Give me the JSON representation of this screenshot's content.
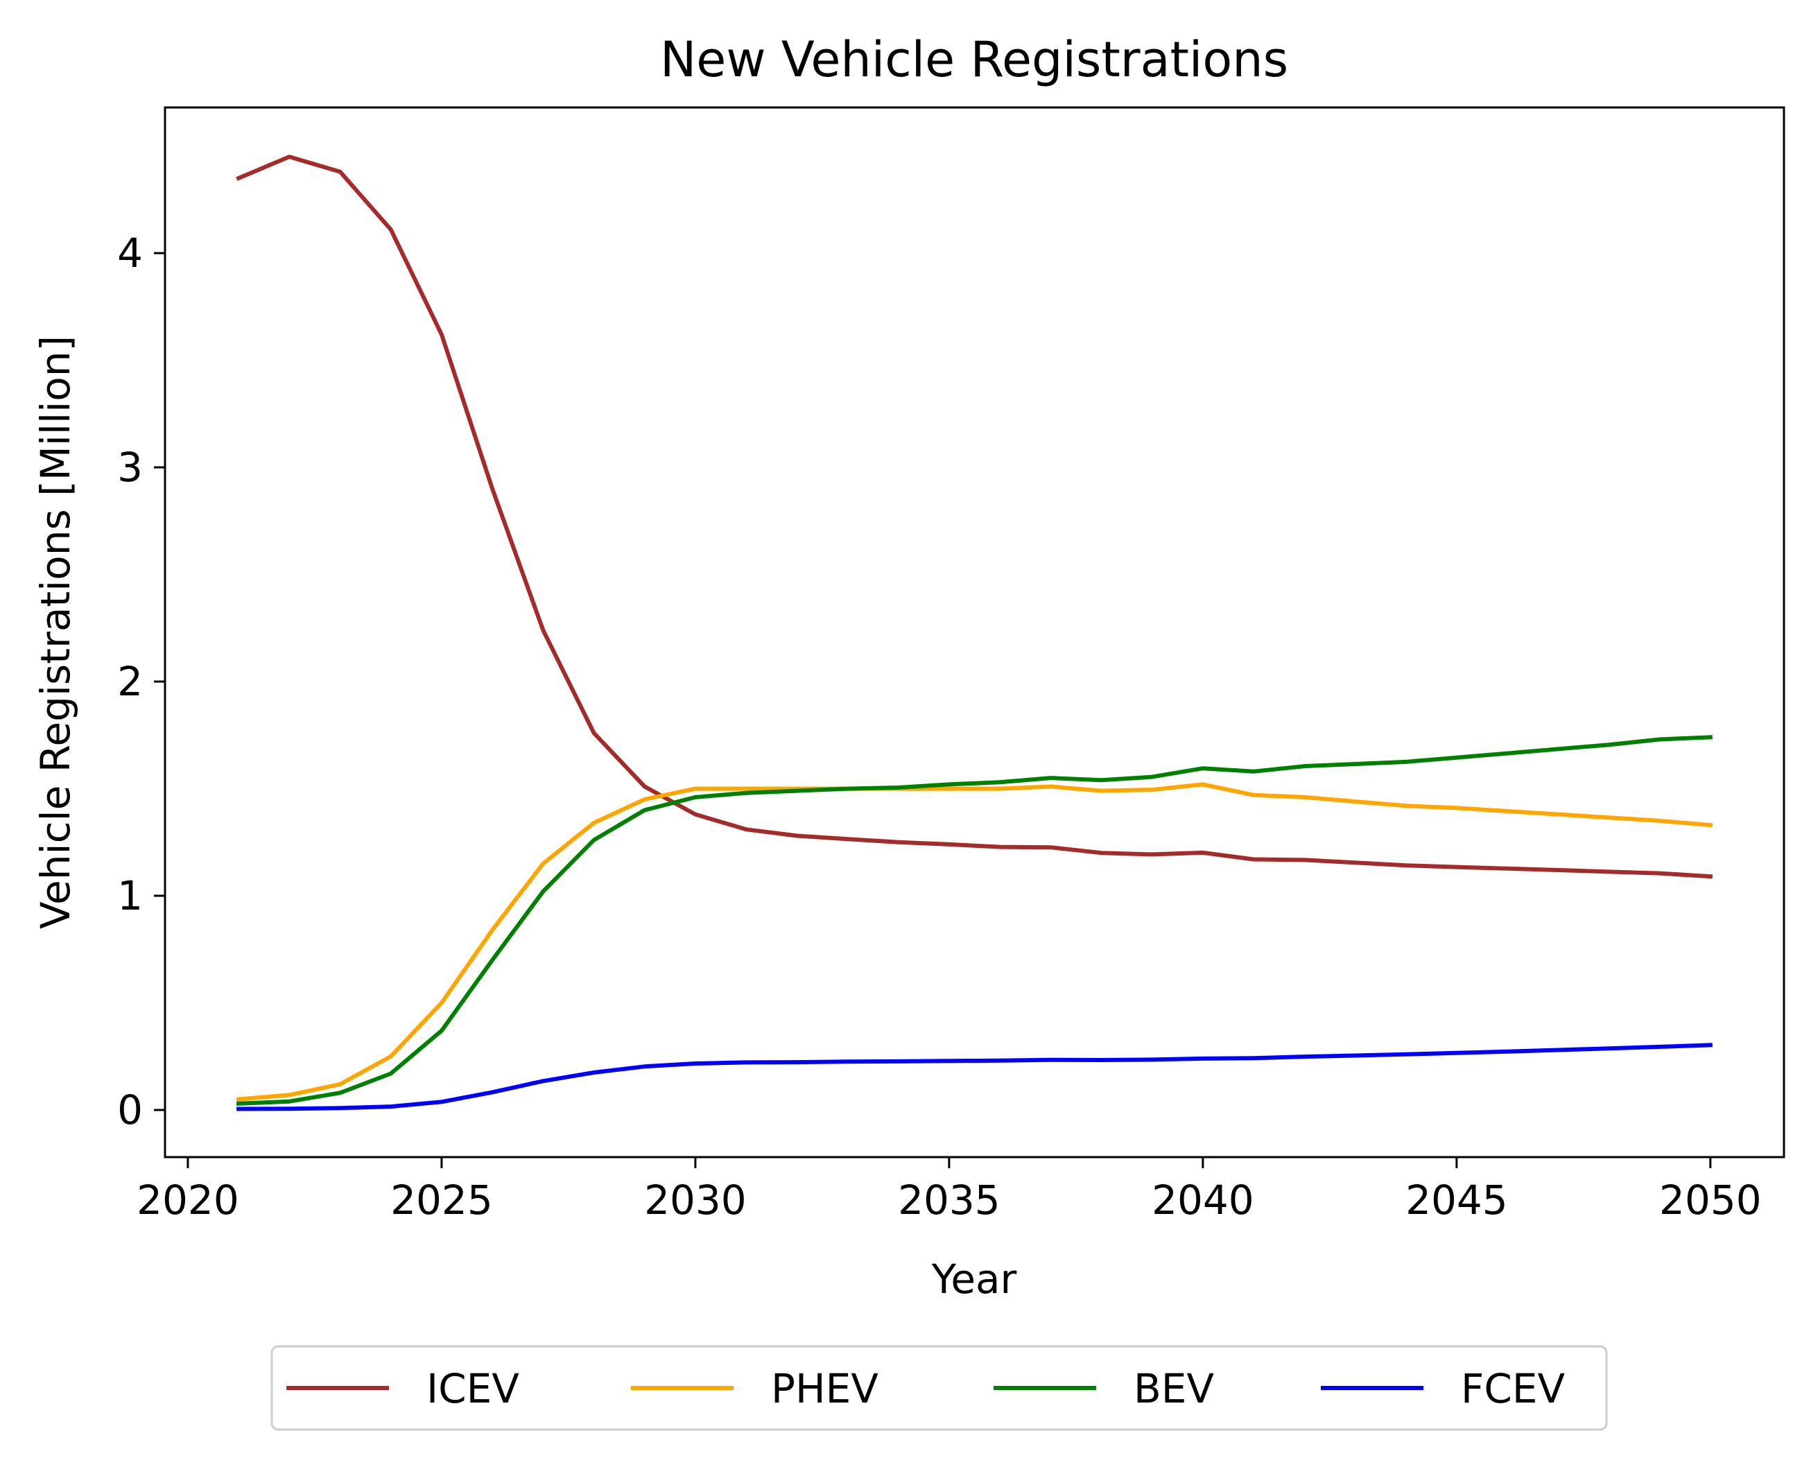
{
  "chart_data": {
    "type": "line",
    "title": "New Vehicle Registrations",
    "xlabel": "Year",
    "ylabel": "Vehicle Registrations [Million]",
    "xlim": [
      2019.55,
      2051.45
    ],
    "ylim": [
      -0.22,
      4.68
    ],
    "xticks": [
      2020,
      2025,
      2030,
      2035,
      2040,
      2045,
      2050
    ],
    "yticks": [
      0,
      1,
      2,
      3,
      4
    ],
    "grid": false,
    "legend_position": "bottom-center, below plot",
    "x": [
      2021,
      2022,
      2023,
      2024,
      2025,
      2026,
      2027,
      2028,
      2029,
      2030,
      2031,
      2032,
      2033,
      2034,
      2035,
      2036,
      2037,
      2038,
      2039,
      2040,
      2041,
      2042,
      2043,
      2044,
      2045,
      2046,
      2047,
      2048,
      2049,
      2050
    ],
    "series": [
      {
        "name": "ICEV",
        "color": "#A52A2A",
        "values": [
          4.35,
          4.45,
          4.38,
          4.11,
          3.62,
          2.9,
          2.24,
          1.76,
          1.51,
          1.38,
          1.31,
          1.28,
          1.265,
          1.25,
          1.24,
          1.228,
          1.226,
          1.2,
          1.193,
          1.201,
          1.17,
          1.167,
          1.155,
          1.142,
          1.134,
          1.127,
          1.12,
          1.112,
          1.105,
          1.09
        ]
      },
      {
        "name": "PHEV",
        "color": "#FFA500",
        "values": [
          0.05,
          0.07,
          0.12,
          0.25,
          0.5,
          0.84,
          1.15,
          1.34,
          1.45,
          1.5,
          1.5,
          1.5,
          1.5,
          1.5,
          1.5,
          1.5,
          1.51,
          1.49,
          1.495,
          1.52,
          1.47,
          1.46,
          1.44,
          1.42,
          1.41,
          1.395,
          1.38,
          1.365,
          1.35,
          1.33
        ]
      },
      {
        "name": "BEV",
        "color": "#008000",
        "values": [
          0.03,
          0.04,
          0.08,
          0.17,
          0.37,
          0.7,
          1.02,
          1.26,
          1.4,
          1.46,
          1.48,
          1.49,
          1.5,
          1.505,
          1.52,
          1.53,
          1.55,
          1.54,
          1.555,
          1.595,
          1.58,
          1.605,
          1.615,
          1.625,
          1.645,
          1.665,
          1.685,
          1.705,
          1.73,
          1.74
        ]
      },
      {
        "name": "FCEV",
        "color": "#0000FF",
        "values": [
          0.005,
          0.006,
          0.009,
          0.016,
          0.038,
          0.083,
          0.135,
          0.175,
          0.203,
          0.217,
          0.222,
          0.223,
          0.226,
          0.227,
          0.229,
          0.231,
          0.234,
          0.233,
          0.235,
          0.24,
          0.242,
          0.249,
          0.254,
          0.26,
          0.266,
          0.273,
          0.28,
          0.287,
          0.295,
          0.303
        ]
      }
    ]
  }
}
